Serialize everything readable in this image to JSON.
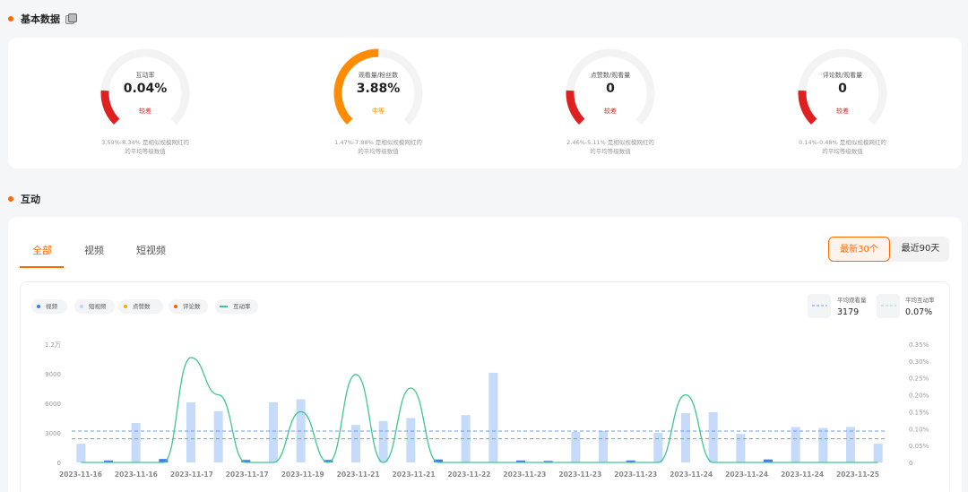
{
  "sections": {
    "basic_title": "基本数据",
    "interaction_title": "互动"
  },
  "gauges": [
    {
      "label": "互动率",
      "value": "0.04%",
      "level": "较差",
      "level_color": "#e02020",
      "fill": 0.18,
      "note1": "3.59%-8.34% 是相似规模网红的",
      "note2": "的平均等级数值"
    },
    {
      "label": "观看量/粉丝数",
      "value": "3.88%",
      "level": "中等",
      "level_color": "#ff8c00",
      "fill": 0.5,
      "note1": "1.47%-7.88% 是相似规模网红的",
      "note2": "的平均等级数值"
    },
    {
      "label": "点赞数/观看量",
      "value": "0",
      "level": "较差",
      "level_color": "#e02020",
      "fill": 0.18,
      "note1": "2.46%-5.11% 是相似规模网红的",
      "note2": "的平均等级数值"
    },
    {
      "label": "评论数/观看量",
      "value": "0",
      "level": "较差",
      "level_color": "#e02020",
      "fill": 0.18,
      "note1": "0.14%-0.48% 是相似规模网红的",
      "note2": "的平均等级数值"
    }
  ],
  "tabs": [
    "全部",
    "视频",
    "短视频"
  ],
  "range": {
    "active": "最新30个",
    "other": "最近90天"
  },
  "legend": [
    {
      "label": "视频",
      "color": "#3d7de8",
      "kind": "dot"
    },
    {
      "label": "短视频",
      "color": "#bcd3f7",
      "kind": "dot"
    },
    {
      "label": "点赞数",
      "color": "#ffa800",
      "kind": "dot"
    },
    {
      "label": "评论数",
      "color": "#ff5a00",
      "kind": "dot"
    },
    {
      "label": "互动率",
      "color": "#3cc78f",
      "kind": "line"
    }
  ],
  "averages": {
    "views_label": "平均观看量",
    "views_value": "3179",
    "rate_label": "平均互动率",
    "rate_value": "0.07%"
  },
  "chart_data": {
    "type": "bar",
    "yticks_left": [
      "0",
      "3000",
      "6000",
      "9000",
      "1.2万"
    ],
    "yticks_right": [
      "0",
      "0.05%",
      "0.10%",
      "0.15%",
      "0.20%",
      "0.25%",
      "0.30%",
      "0.35%"
    ],
    "ylim_left": [
      0,
      12000
    ],
    "ylim_right": [
      0,
      0.35
    ],
    "xticks": [
      "2023-11-16",
      "2023-11-16",
      "2023-11-17",
      "2023-11-17",
      "2023-11-19",
      "2023-11-21",
      "2023-11-21",
      "2023-11-22",
      "2023-11-23",
      "2023-11-23",
      "2023-11-23",
      "2023-11-24",
      "2023-11-24",
      "2023-11-24",
      "2023-11-25"
    ],
    "short_video_views": [
      1900,
      0,
      4000,
      0,
      6100,
      5200,
      0,
      6100,
      6400,
      0,
      3800,
      4200,
      4500,
      0,
      4800,
      9100,
      0,
      0,
      3100,
      3200,
      0,
      3000,
      5000,
      5100,
      2900,
      0,
      3600,
      3500,
      3600,
      1900
    ],
    "video_views": [
      0,
      200,
      0,
      350,
      0,
      0,
      250,
      0,
      0,
      250,
      0,
      0,
      0,
      300,
      0,
      0,
      200,
      150,
      0,
      0,
      200,
      0,
      0,
      0,
      0,
      300,
      0,
      0,
      0,
      0
    ],
    "rate": [
      0,
      0,
      0,
      0,
      0.31,
      0.2,
      0,
      0,
      0.15,
      0,
      0.26,
      0,
      0.22,
      0,
      0,
      0,
      0,
      0,
      0,
      0,
      0,
      0,
      0.2,
      0,
      0,
      0,
      0,
      0,
      0,
      0
    ],
    "avg_views": 3179,
    "avg_rate": 0.07
  }
}
